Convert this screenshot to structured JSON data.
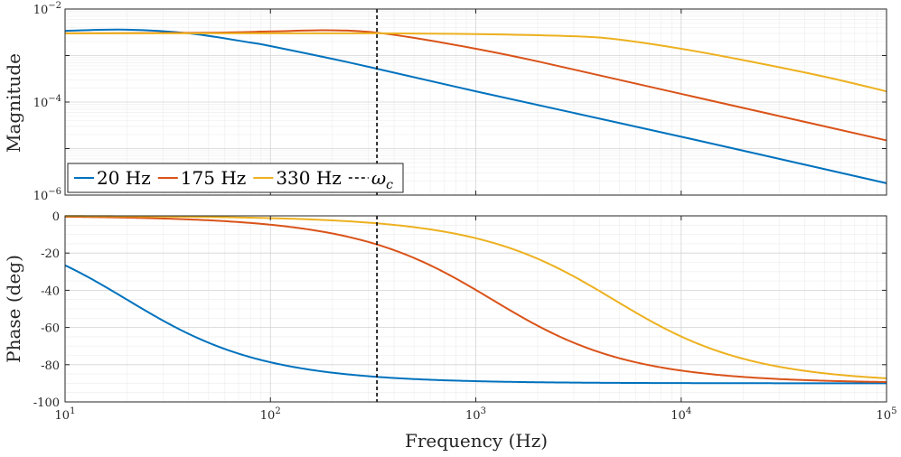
{
  "chart_data": [
    {
      "type": "line",
      "panel": "magnitude",
      "ylabel": "Magnitude",
      "xscale": "log",
      "yscale": "log",
      "xlim": [
        10,
        100000
      ],
      "ylim": [
        1e-06,
        0.01
      ],
      "grid": true,
      "x_ticks": [
        {
          "value": 10,
          "base": "10",
          "exp": "1"
        },
        {
          "value": 100,
          "base": "10",
          "exp": "2"
        },
        {
          "value": 1000,
          "base": "10",
          "exp": "3"
        },
        {
          "value": 10000,
          "base": "10",
          "exp": "4"
        },
        {
          "value": 100000,
          "base": "10",
          "exp": "5"
        }
      ],
      "y_ticks": [
        {
          "value": 1e-06,
          "base": "10",
          "exp": "−6"
        },
        {
          "value": 0.0001,
          "base": "10",
          "exp": "−4"
        },
        {
          "value": 0.01,
          "base": "10",
          "exp": "−2"
        }
      ],
      "legend_position": "bottom-left",
      "series": [
        {
          "name": "20 Hz",
          "color": "#0072BD",
          "x": [
            10,
            20,
            40,
            80,
            100,
            200,
            330,
            1000,
            10000,
            100000
          ],
          "y": [
            0.0034,
            0.0036,
            0.003,
            0.0019,
            0.0016,
            0.00085,
            0.00052,
            0.00017,
            1.8e-05,
            1.8e-06
          ]
        },
        {
          "name": "175 Hz",
          "color": "#D95319",
          "x": [
            10,
            50,
            100,
            175,
            250,
            330,
            500,
            1000,
            2000,
            10000,
            100000
          ],
          "y": [
            0.003,
            0.0031,
            0.0033,
            0.0035,
            0.0034,
            0.0031,
            0.0024,
            0.0014,
            0.00075,
            0.00015,
            1.5e-05
          ]
        },
        {
          "name": "330 Hz",
          "color": "#EDB120",
          "x": [
            10,
            100,
            330,
            1000,
            3000,
            5000,
            10000,
            20000,
            50000,
            100000
          ],
          "y": [
            0.003,
            0.003,
            0.003,
            0.0029,
            0.0026,
            0.0022,
            0.0014,
            0.0008,
            0.00035,
            0.00017
          ]
        }
      ],
      "markers": [
        {
          "name": "ω_c",
          "name_base": "ω",
          "name_sub": "c",
          "x": 330,
          "style": "dashed",
          "color": "#000000"
        }
      ]
    },
    {
      "type": "line",
      "panel": "phase",
      "ylabel": "Phase (deg)",
      "xlabel": "Frequency (Hz)",
      "xscale": "log",
      "xlim": [
        10,
        100000
      ],
      "ylim": [
        -100,
        0
      ],
      "grid": true,
      "x_ticks": [
        {
          "value": 10,
          "base": "10",
          "exp": "1"
        },
        {
          "value": 100,
          "base": "10",
          "exp": "2"
        },
        {
          "value": 1000,
          "base": "10",
          "exp": "3"
        },
        {
          "value": 10000,
          "base": "10",
          "exp": "4"
        },
        {
          "value": 100000,
          "base": "10",
          "exp": "5"
        }
      ],
      "y_ticks": [
        {
          "value": -100,
          "label": "-100"
        },
        {
          "value": -80,
          "label": "-80"
        },
        {
          "value": -60,
          "label": "-60"
        },
        {
          "value": -40,
          "label": "-40"
        },
        {
          "value": -20,
          "label": "-20"
        },
        {
          "value": 0,
          "label": "0"
        }
      ],
      "series": [
        {
          "name": "20 Hz",
          "color": "#0072BD",
          "pole_hz": 20
        },
        {
          "name": "175 Hz",
          "color": "#D95319",
          "pole_hz": 1200
        },
        {
          "name": "330 Hz",
          "color": "#EDB120",
          "pole_hz": 4700
        }
      ],
      "markers": [
        {
          "name": "ω_c",
          "x": 330,
          "style": "dashed",
          "color": "#000000"
        }
      ]
    }
  ]
}
